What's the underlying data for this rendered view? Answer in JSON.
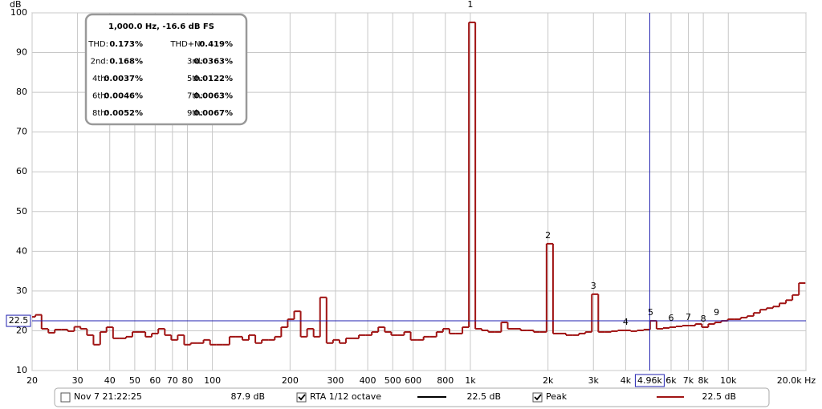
{
  "chart_data": {
    "type": "step",
    "ylabel": "dB",
    "xscale": "log",
    "grid": true,
    "xlim": [
      20,
      20000
    ],
    "ylim": [
      10,
      100
    ],
    "yticks": [
      10,
      20,
      30,
      40,
      50,
      60,
      70,
      80,
      90,
      100
    ],
    "xticks": [
      20,
      30,
      40,
      50,
      60,
      70,
      80,
      100,
      200,
      300,
      400,
      500,
      600,
      800,
      {
        "value": 1000,
        "label": "1k"
      },
      {
        "value": 2000,
        "label": "2k"
      },
      {
        "value": 3000,
        "label": "3k"
      },
      {
        "value": 4000,
        "label": "4k"
      },
      {
        "value": 6000,
        "label": "6k"
      },
      {
        "value": 7000,
        "label": "7k"
      },
      {
        "value": 8000,
        "label": "8k"
      },
      {
        "value": 10000,
        "label": "10k"
      },
      {
        "value": 20000,
        "label": "20.0k Hz"
      }
    ],
    "x": [
      20.0,
      21.2,
      22.4,
      23.8,
      25.2,
      26.7,
      28.3,
      30.0,
      31.7,
      33.6,
      35.6,
      37.8,
      40.0,
      42.4,
      44.9,
      47.6,
      50.4,
      53.4,
      56.6,
      59.9,
      63.5,
      67.3,
      71.3,
      75.5,
      80.0,
      84.8,
      89.8,
      95.1,
      100.8,
      106.8,
      113.1,
      119.9,
      127.0,
      134.5,
      142.5,
      151.0,
      160.0,
      169.5,
      179.6,
      190.3,
      201.6,
      213.6,
      226.3,
      239.7,
      254.0,
      269.1,
      285.1,
      302.1,
      320.0,
      339.0,
      359.2,
      380.5,
      403.2,
      427.1,
      452.5,
      479.5,
      508.0,
      538.2,
      570.2,
      604.1,
      640,
      678,
      718,
      761,
      806,
      854,
      905,
      959,
      1016,
      1076,
      1140,
      1208,
      1280,
      1356,
      1437,
      1522,
      1613,
      1709,
      1810,
      1918,
      2032,
      2153,
      2281,
      2416,
      2560,
      2712,
      2874,
      3044,
      3225,
      3417,
      3620,
      3836,
      4064,
      4305,
      4561,
      4833,
      5120,
      5424,
      5747,
      6089,
      6451,
      6834,
      7241,
      7671,
      8127,
      8611,
      9123,
      9665,
      10240,
      10849,
      11494,
      12177,
      12902,
      13669,
      14482,
      15343,
      16255,
      17222,
      18246,
      19331
    ],
    "series": [
      {
        "name": "Peak",
        "color": "#a01414",
        "values": [
          23.5,
          24,
          20.5,
          19.5,
          20.3,
          20.3,
          19.9,
          21,
          20.5,
          18.9,
          16.5,
          19.7,
          20.9,
          18.1,
          18.1,
          18.5,
          19.7,
          19.7,
          18.5,
          19.3,
          20.5,
          18.9,
          17.7,
          18.9,
          16.5,
          16.9,
          16.9,
          17.7,
          16.5,
          16.5,
          16.5,
          18.5,
          18.5,
          17.7,
          18.9,
          16.9,
          17.7,
          17.7,
          18.5,
          20.9,
          22.9,
          24.9,
          18.5,
          20.5,
          18.5,
          28.4,
          16.9,
          17.7,
          16.9,
          18.1,
          18.1,
          18.9,
          18.9,
          19.7,
          20.9,
          19.7,
          18.9,
          18.9,
          19.7,
          17.7,
          17.7,
          18.5,
          18.5,
          19.7,
          20.5,
          19.3,
          19.3,
          20.9,
          97.6,
          20.5,
          20.1,
          19.7,
          19.7,
          22.1,
          20.5,
          20.5,
          20.1,
          20.1,
          19.7,
          19.7,
          41.9,
          19.3,
          19.3,
          18.9,
          18.9,
          19.3,
          19.7,
          29.2,
          19.7,
          19.7,
          19.9,
          20.1,
          20.1,
          19.9,
          20.1,
          20.3,
          22.5,
          20.5,
          20.7,
          20.9,
          21.1,
          21.3,
          21.3,
          21.7,
          20.9,
          21.7,
          22.1,
          22.5,
          22.9,
          22.9,
          23.3,
          23.7,
          24.5,
          25.3,
          25.7,
          26.1,
          26.9,
          27.7,
          29,
          32
        ]
      }
    ],
    "harmonic_markers": [
      {
        "label": "1",
        "x": 1000,
        "y": 100
      },
      {
        "label": "2",
        "x": 2000,
        "y": 41.9
      },
      {
        "label": "3",
        "x": 3000,
        "y": 29.2
      },
      {
        "label": "4",
        "x": 4000,
        "y": 20.1
      },
      {
        "label": "5",
        "x": 5000,
        "y": 22.5
      },
      {
        "label": "6",
        "x": 6000,
        "y": 21.1
      },
      {
        "label": "7",
        "x": 7000,
        "y": 21.3
      },
      {
        "label": "8",
        "x": 8000,
        "y": 20.9
      },
      {
        "label": "9",
        "x": 9000,
        "y": 22.5
      }
    ],
    "cursor": {
      "x": 4960,
      "x_label": "4.96k",
      "y": 22.5,
      "y_label": "22.5",
      "color": "#2020b0"
    },
    "distortion_box": {
      "header": "1,000.0 Hz, -16.6 dB FS",
      "rows": [
        [
          "THD:",
          "0.173%",
          "THD+N:",
          "0.419%"
        ],
        [
          "2nd:",
          "0.168%",
          "3rd:",
          "0.0363%"
        ],
        [
          "4th:",
          "0.0037%",
          "5th:",
          "0.0122%"
        ],
        [
          "6th:",
          "0.0046%",
          "7th:",
          "0.0063%"
        ],
        [
          "8th:",
          "0.0052%",
          "9th:",
          "0.0067%"
        ]
      ]
    },
    "legend_bar": {
      "entries": [
        {
          "checked": false,
          "name": "Nov 7 21:22:25",
          "level": "87.9 dB",
          "color": "#2040a0"
        },
        {
          "checked": true,
          "name": "RTA 1/12 octave",
          "level": "22.5 dB",
          "color": "#000000"
        }
      ],
      "peak_checked": true,
      "peak_level": "22.5 dB"
    }
  }
}
